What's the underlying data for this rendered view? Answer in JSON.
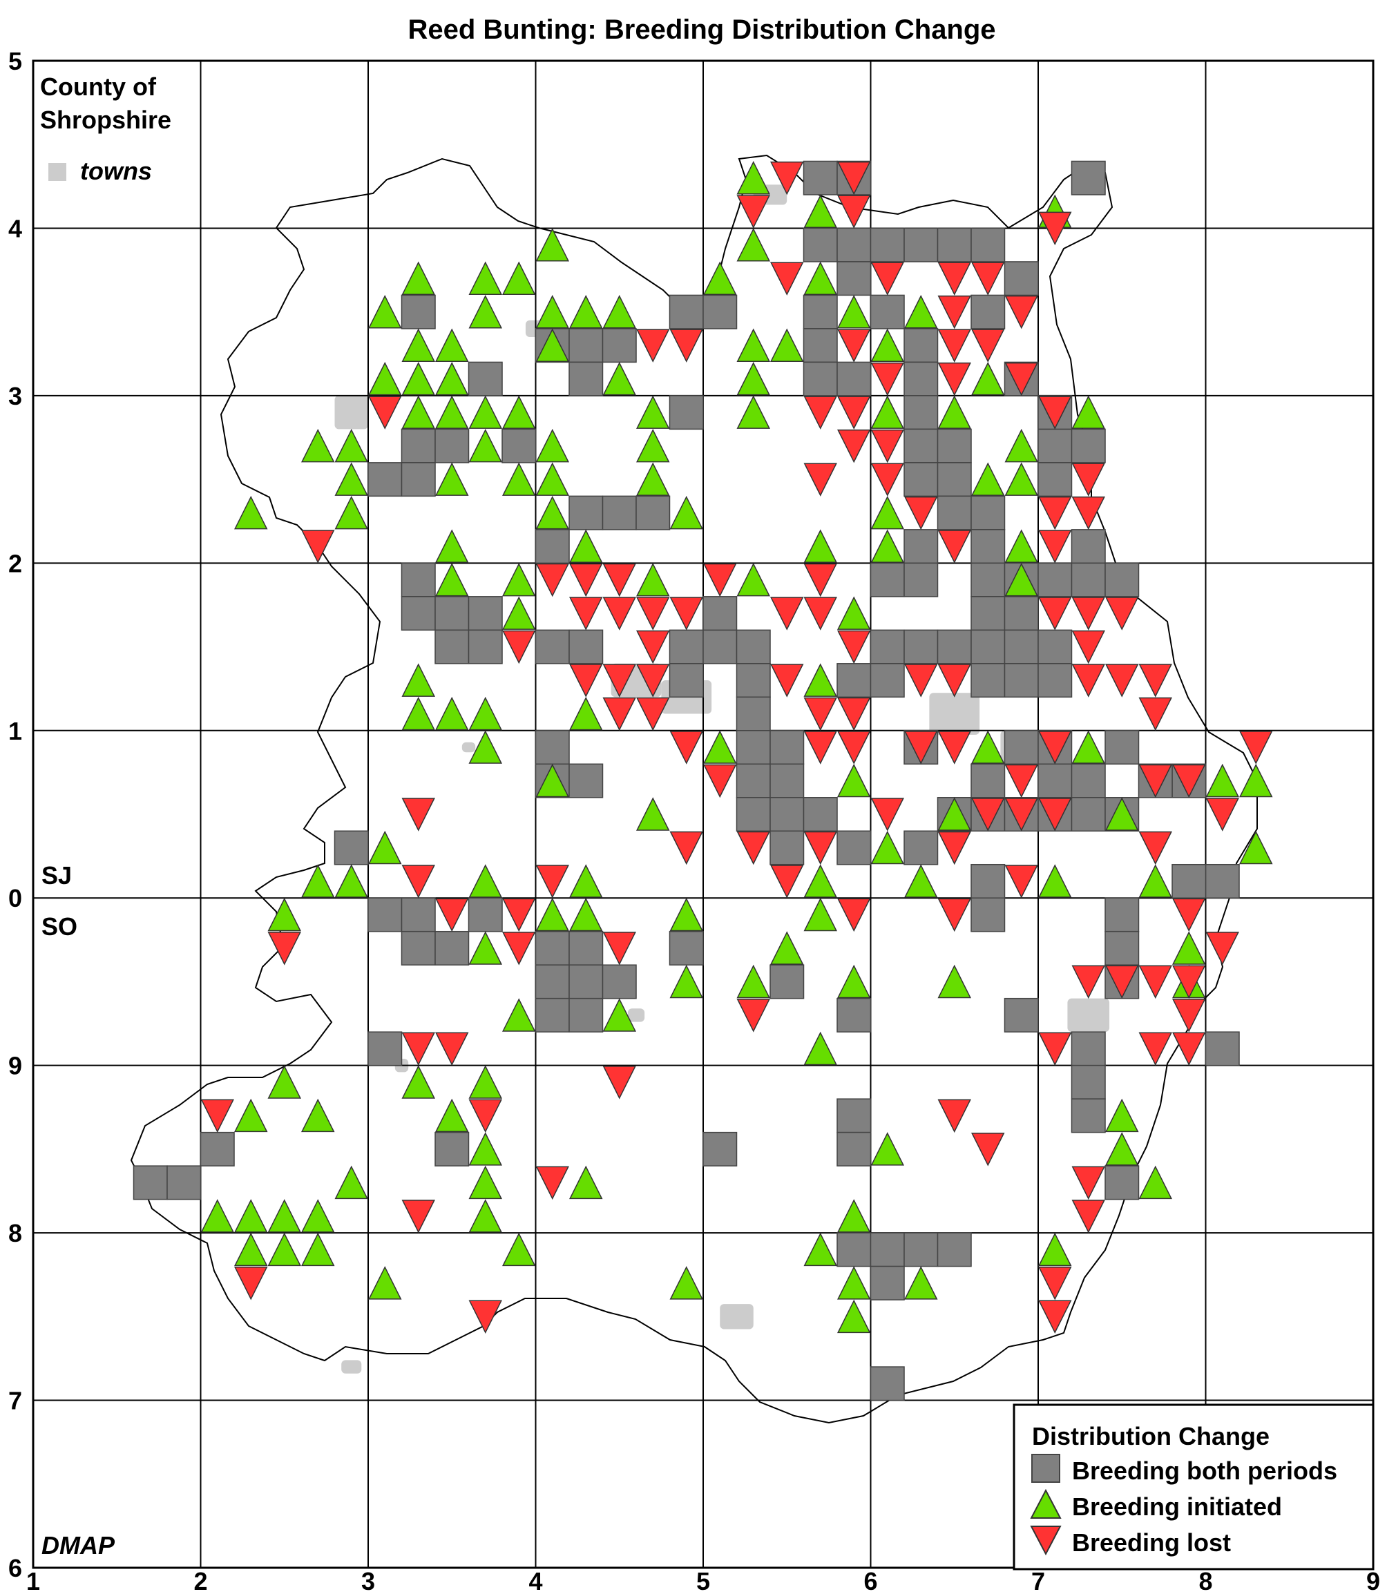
{
  "title": "Reed Bunting: Breeding Distribution Change",
  "county_label": [
    "County of",
    "Shropshire"
  ],
  "towns_label": "towns",
  "grid_labels": {
    "north": "SJ",
    "south": "SO"
  },
  "credit": "DMAP",
  "x_axis_ticks": [
    "1",
    "2",
    "3",
    "4",
    "5",
    "6",
    "7",
    "8",
    "9"
  ],
  "y_axis_ticks": [
    "6",
    "7",
    "8",
    "9",
    "0",
    "1",
    "2",
    "3",
    "4",
    "5"
  ],
  "colors": {
    "both": "#808080",
    "initiated": "#66dd00",
    "lost": "#ff3333",
    "towns": "#cccccc",
    "grid": "#000000"
  },
  "legend": {
    "title": "Distribution Change",
    "items": [
      {
        "key": "both",
        "label": "Breeding both periods",
        "symbol": "square"
      },
      {
        "key": "initiated",
        "label": "Breeding initiated",
        "symbol": "triangle-up"
      },
      {
        "key": "lost",
        "label": "Breeding lost",
        "symbol": "triangle-down"
      }
    ]
  },
  "chart_data": {
    "type": "map",
    "x_range": [
      1,
      9
    ],
    "y_range": [
      6,
      15
    ],
    "cell_size_km": 2,
    "note_y": "y values are continuous northings; tick labels show last digit",
    "both": [
      [
        1.7,
        8.3
      ],
      [
        1.9,
        8.3
      ],
      [
        2.1,
        8.5
      ],
      [
        3.3,
        13.5
      ],
      [
        3.7,
        13.1
      ],
      [
        4.1,
        13.3
      ],
      [
        4.3,
        13.3
      ],
      [
        4.5,
        13.3
      ],
      [
        4.3,
        13.1
      ],
      [
        3.3,
        12.7
      ],
      [
        3.5,
        12.7
      ],
      [
        3.9,
        12.7
      ],
      [
        3.1,
        12.5
      ],
      [
        3.3,
        12.5
      ],
      [
        4.9,
        12.9
      ],
      [
        4.3,
        12.3
      ],
      [
        4.5,
        12.3
      ],
      [
        4.7,
        12.3
      ],
      [
        4.1,
        12.1
      ],
      [
        3.3,
        11.9
      ],
      [
        3.3,
        11.7
      ],
      [
        3.5,
        11.7
      ],
      [
        3.7,
        11.7
      ],
      [
        3.5,
        11.5
      ],
      [
        3.7,
        11.5
      ],
      [
        4.1,
        11.5
      ],
      [
        4.3,
        11.5
      ],
      [
        4.1,
        10.9
      ],
      [
        4.1,
        10.7
      ],
      [
        4.3,
        10.7
      ],
      [
        4.9,
        13.5
      ],
      [
        5.1,
        13.5
      ],
      [
        4.9,
        11.5
      ],
      [
        5.1,
        11.5
      ],
      [
        5.3,
        11.5
      ],
      [
        5.1,
        11.7
      ],
      [
        4.9,
        11.3
      ],
      [
        5.3,
        11.3
      ],
      [
        5.3,
        11.1
      ],
      [
        5.3,
        10.9
      ],
      [
        5.5,
        10.9
      ],
      [
        5.3,
        10.7
      ],
      [
        5.5,
        10.7
      ],
      [
        5.3,
        10.5
      ],
      [
        5.5,
        10.5
      ],
      [
        5.7,
        10.5
      ],
      [
        5.5,
        10.3
      ],
      [
        5.9,
        10.3
      ],
      [
        5.9,
        11.3
      ],
      [
        5.7,
        14.3
      ],
      [
        5.9,
        14.3
      ],
      [
        5.7,
        13.9
      ],
      [
        5.9,
        13.9
      ],
      [
        6.1,
        13.9
      ],
      [
        6.3,
        13.9
      ],
      [
        6.5,
        13.9
      ],
      [
        6.7,
        13.9
      ],
      [
        5.9,
        13.7
      ],
      [
        6.9,
        13.7
      ],
      [
        5.7,
        13.5
      ],
      [
        6.1,
        13.5
      ],
      [
        6.7,
        13.5
      ],
      [
        5.7,
        13.3
      ],
      [
        6.3,
        13.3
      ],
      [
        5.7,
        13.1
      ],
      [
        5.9,
        13.1
      ],
      [
        6.3,
        13.1
      ],
      [
        6.9,
        13.1
      ],
      [
        6.3,
        12.9
      ],
      [
        6.3,
        12.7
      ],
      [
        6.5,
        12.7
      ],
      [
        6.3,
        12.5
      ],
      [
        6.5,
        12.5
      ],
      [
        6.5,
        12.3
      ],
      [
        6.7,
        12.3
      ],
      [
        6.3,
        12.1
      ],
      [
        6.7,
        12.1
      ],
      [
        6.1,
        11.9
      ],
      [
        6.3,
        11.9
      ],
      [
        6.7,
        11.9
      ],
      [
        6.7,
        11.7
      ],
      [
        6.9,
        11.7
      ],
      [
        6.1,
        11.5
      ],
      [
        6.3,
        11.5
      ],
      [
        6.5,
        11.5
      ],
      [
        6.7,
        11.5
      ],
      [
        6.9,
        11.5
      ],
      [
        7.1,
        11.5
      ],
      [
        6.1,
        11.3
      ],
      [
        6.7,
        11.3
      ],
      [
        6.9,
        11.3
      ],
      [
        7.1,
        11.3
      ],
      [
        6.3,
        10.9
      ],
      [
        6.9,
        10.9
      ],
      [
        7.1,
        10.9
      ],
      [
        6.7,
        10.7
      ],
      [
        7.1,
        10.7
      ],
      [
        6.5,
        10.5
      ],
      [
        6.7,
        10.5
      ],
      [
        6.9,
        10.5
      ],
      [
        7.1,
        10.5
      ],
      [
        7.3,
        10.5
      ],
      [
        7.5,
        10.5
      ],
      [
        6.3,
        10.3
      ],
      [
        6.7,
        10.1
      ],
      [
        6.7,
        9.9
      ],
      [
        7.1,
        12.7
      ],
      [
        7.3,
        12.7
      ],
      [
        7.1,
        12.5
      ],
      [
        7.1,
        12.9
      ],
      [
        7.3,
        12.1
      ],
      [
        6.9,
        11.9
      ],
      [
        7.1,
        11.9
      ],
      [
        7.3,
        11.9
      ],
      [
        7.5,
        11.9
      ],
      [
        7.5,
        10.9
      ],
      [
        7.3,
        10.7
      ],
      [
        7.9,
        10.7
      ],
      [
        7.7,
        10.7
      ],
      [
        8.1,
        10.1
      ],
      [
        7.9,
        10.1
      ],
      [
        7.5,
        9.9
      ],
      [
        7.5,
        9.7
      ],
      [
        7.5,
        9.5
      ],
      [
        6.9,
        9.3
      ],
      [
        7.3,
        9.1
      ],
      [
        7.3,
        8.9
      ],
      [
        7.3,
        8.7
      ],
      [
        8.1,
        9.1
      ],
      [
        7.5,
        8.3
      ],
      [
        4.9,
        9.7
      ],
      [
        5.5,
        9.5
      ],
      [
        5.9,
        9.3
      ],
      [
        4.1,
        9.7
      ],
      [
        4.3,
        9.7
      ],
      [
        4.1,
        9.5
      ],
      [
        4.3,
        9.5
      ],
      [
        4.5,
        9.5
      ],
      [
        4.1,
        9.3
      ],
      [
        4.3,
        9.3
      ],
      [
        3.1,
        9.9
      ],
      [
        3.3,
        9.9
      ],
      [
        3.7,
        9.9
      ],
      [
        3.3,
        9.7
      ],
      [
        3.5,
        9.7
      ],
      [
        3.1,
        9.1
      ],
      [
        3.5,
        8.5
      ],
      [
        2.9,
        10.3
      ],
      [
        5.1,
        8.5
      ],
      [
        5.9,
        8.7
      ],
      [
        5.9,
        8.5
      ],
      [
        5.9,
        7.9
      ],
      [
        6.1,
        7.9
      ],
      [
        6.3,
        7.9
      ],
      [
        6.5,
        7.9
      ],
      [
        6.1,
        7.7
      ],
      [
        6.1,
        7.1
      ],
      [
        7.3,
        14.3
      ]
    ],
    "initiated": [
      [
        2.3,
        12.3
      ],
      [
        2.7,
        12.7
      ],
      [
        2.9,
        12.7
      ],
      [
        2.9,
        12.5
      ],
      [
        2.9,
        12.3
      ],
      [
        3.1,
        13.5
      ],
      [
        3.3,
        13.7
      ],
      [
        3.3,
        13.3
      ],
      [
        3.5,
        13.3
      ],
      [
        3.1,
        13.1
      ],
      [
        3.3,
        13.1
      ],
      [
        3.5,
        13.1
      ],
      [
        3.3,
        12.9
      ],
      [
        3.5,
        12.9
      ],
      [
        3.7,
        12.9
      ],
      [
        3.9,
        12.9
      ],
      [
        3.7,
        12.7
      ],
      [
        3.5,
        12.5
      ],
      [
        3.7,
        13.7
      ],
      [
        3.9,
        13.7
      ],
      [
        3.7,
        13.5
      ],
      [
        4.1,
        13.9
      ],
      [
        4.1,
        13.5
      ],
      [
        4.3,
        13.5
      ],
      [
        4.5,
        13.5
      ],
      [
        4.1,
        13.3
      ],
      [
        4.5,
        13.1
      ],
      [
        4.7,
        12.9
      ],
      [
        4.7,
        12.7
      ],
      [
        4.7,
        12.5
      ],
      [
        4.1,
        12.7
      ],
      [
        4.1,
        12.5
      ],
      [
        3.9,
        12.5
      ],
      [
        4.1,
        12.3
      ],
      [
        4.9,
        12.3
      ],
      [
        4.3,
        12.1
      ],
      [
        3.5,
        12.1
      ],
      [
        3.5,
        11.9
      ],
      [
        3.9,
        11.9
      ],
      [
        3.9,
        11.7
      ],
      [
        4.7,
        11.9
      ],
      [
        3.3,
        11.3
      ],
      [
        3.3,
        11.1
      ],
      [
        3.5,
        11.1
      ],
      [
        3.7,
        11.1
      ],
      [
        3.7,
        10.9
      ],
      [
        4.3,
        11.1
      ],
      [
        4.1,
        10.7
      ],
      [
        3.1,
        10.3
      ],
      [
        2.7,
        10.1
      ],
      [
        2.9,
        10.1
      ],
      [
        2.5,
        9.9
      ],
      [
        3.7,
        10.1
      ],
      [
        4.3,
        10.1
      ],
      [
        4.1,
        9.9
      ],
      [
        4.3,
        9.9
      ],
      [
        3.7,
        9.7
      ],
      [
        4.5,
        9.3
      ],
      [
        3.9,
        9.3
      ],
      [
        4.7,
        10.5
      ],
      [
        4.9,
        9.9
      ],
      [
        4.9,
        9.5
      ],
      [
        5.1,
        13.7
      ],
      [
        5.3,
        14.3
      ],
      [
        5.3,
        13.9
      ],
      [
        5.7,
        14.1
      ],
      [
        5.7,
        13.7
      ],
      [
        5.9,
        13.5
      ],
      [
        5.3,
        13.3
      ],
      [
        5.5,
        13.3
      ],
      [
        5.3,
        13.1
      ],
      [
        5.3,
        12.9
      ],
      [
        5.1,
        10.9
      ],
      [
        5.3,
        11.9
      ],
      [
        5.7,
        12.1
      ],
      [
        5.9,
        11.7
      ],
      [
        5.7,
        11.3
      ],
      [
        5.9,
        10.7
      ],
      [
        5.7,
        10.1
      ],
      [
        5.7,
        9.9
      ],
      [
        5.5,
        9.7
      ],
      [
        5.3,
        9.5
      ],
      [
        5.9,
        9.5
      ],
      [
        5.7,
        9.1
      ],
      [
        6.1,
        13.3
      ],
      [
        6.3,
        13.5
      ],
      [
        6.1,
        12.9
      ],
      [
        6.5,
        12.9
      ],
      [
        6.1,
        12.3
      ],
      [
        6.1,
        12.1
      ],
      [
        6.7,
        13.1
      ],
      [
        6.9,
        12.7
      ],
      [
        6.7,
        12.5
      ],
      [
        6.9,
        12.5
      ],
      [
        6.9,
        12.1
      ],
      [
        6.9,
        11.9
      ],
      [
        6.7,
        10.9
      ],
      [
        6.5,
        10.5
      ],
      [
        6.1,
        10.3
      ],
      [
        6.3,
        10.1
      ],
      [
        7.1,
        10.1
      ],
      [
        6.5,
        9.5
      ],
      [
        7.1,
        14.1
      ],
      [
        7.3,
        12.9
      ],
      [
        7.3,
        10.9
      ],
      [
        7.5,
        10.5
      ],
      [
        7.7,
        10.1
      ],
      [
        7.9,
        9.7
      ],
      [
        7.9,
        9.5
      ],
      [
        8.1,
        10.7
      ],
      [
        8.3,
        10.7
      ],
      [
        8.3,
        10.3
      ],
      [
        2.5,
        8.9
      ],
      [
        2.3,
        8.7
      ],
      [
        2.7,
        8.7
      ],
      [
        2.9,
        8.3
      ],
      [
        2.1,
        8.1
      ],
      [
        2.3,
        8.1
      ],
      [
        2.5,
        8.1
      ],
      [
        2.7,
        8.1
      ],
      [
        2.3,
        7.9
      ],
      [
        2.5,
        7.9
      ],
      [
        2.7,
        7.9
      ],
      [
        3.1,
        7.7
      ],
      [
        3.3,
        8.9
      ],
      [
        3.5,
        8.7
      ],
      [
        3.7,
        8.9
      ],
      [
        3.7,
        8.5
      ],
      [
        3.7,
        8.3
      ],
      [
        3.7,
        8.1
      ],
      [
        3.9,
        7.9
      ],
      [
        4.3,
        8.3
      ],
      [
        4.9,
        7.7
      ],
      [
        5.7,
        7.9
      ],
      [
        5.9,
        8.1
      ],
      [
        5.9,
        7.7
      ],
      [
        5.9,
        7.5
      ],
      [
        6.1,
        8.5
      ],
      [
        6.3,
        7.7
      ],
      [
        7.1,
        7.9
      ],
      [
        7.5,
        8.7
      ],
      [
        7.5,
        8.5
      ],
      [
        7.7,
        8.3
      ]
    ],
    "lost": [
      [
        3.1,
        12.9
      ],
      [
        2.7,
        12.1
      ],
      [
        2.5,
        9.7
      ],
      [
        3.3,
        10.5
      ],
      [
        3.3,
        10.1
      ],
      [
        3.5,
        9.9
      ],
      [
        3.9,
        9.9
      ],
      [
        3.9,
        9.7
      ],
      [
        3.3,
        9.1
      ],
      [
        3.5,
        9.1
      ],
      [
        2.1,
        8.7
      ],
      [
        3.7,
        8.7
      ],
      [
        3.3,
        8.1
      ],
      [
        3.7,
        7.5
      ],
      [
        2.3,
        7.7
      ],
      [
        4.1,
        8.3
      ],
      [
        4.5,
        8.9
      ],
      [
        4.1,
        10.1
      ],
      [
        4.5,
        9.7
      ],
      [
        4.7,
        13.3
      ],
      [
        4.9,
        13.3
      ],
      [
        4.1,
        11.9
      ],
      [
        4.3,
        11.9
      ],
      [
        4.5,
        11.9
      ],
      [
        4.3,
        11.7
      ],
      [
        4.5,
        11.7
      ],
      [
        4.7,
        11.7
      ],
      [
        4.9,
        11.7
      ],
      [
        3.9,
        11.5
      ],
      [
        4.7,
        11.5
      ],
      [
        4.3,
        11.3
      ],
      [
        4.5,
        11.3
      ],
      [
        4.7,
        11.3
      ],
      [
        4.5,
        11.1
      ],
      [
        4.7,
        11.1
      ],
      [
        4.9,
        10.9
      ],
      [
        5.1,
        11.9
      ],
      [
        5.5,
        11.7
      ],
      [
        5.7,
        11.7
      ],
      [
        5.7,
        11.9
      ],
      [
        5.5,
        11.3
      ],
      [
        5.9,
        11.5
      ],
      [
        5.7,
        11.1
      ],
      [
        5.9,
        11.1
      ],
      [
        5.7,
        10.9
      ],
      [
        5.9,
        10.9
      ],
      [
        5.1,
        10.7
      ],
      [
        5.3,
        10.3
      ],
      [
        5.7,
        10.3
      ],
      [
        5.5,
        10.1
      ],
      [
        4.9,
        10.3
      ],
      [
        5.9,
        9.9
      ],
      [
        5.3,
        9.3
      ],
      [
        5.5,
        14.3
      ],
      [
        5.9,
        14.3
      ],
      [
        5.3,
        14.1
      ],
      [
        5.9,
        14.1
      ],
      [
        5.5,
        13.7
      ],
      [
        6.1,
        13.7
      ],
      [
        6.5,
        13.7
      ],
      [
        6.7,
        13.7
      ],
      [
        6.5,
        13.5
      ],
      [
        6.9,
        13.5
      ],
      [
        5.9,
        13.3
      ],
      [
        6.5,
        13.3
      ],
      [
        6.7,
        13.3
      ],
      [
        6.1,
        13.1
      ],
      [
        6.5,
        13.1
      ],
      [
        6.9,
        13.1
      ],
      [
        5.7,
        12.9
      ],
      [
        5.9,
        12.9
      ],
      [
        5.9,
        12.7
      ],
      [
        6.1,
        12.7
      ],
      [
        7.1,
        12.9
      ],
      [
        5.7,
        12.5
      ],
      [
        6.1,
        12.5
      ],
      [
        6.3,
        12.3
      ],
      [
        6.5,
        12.1
      ],
      [
        7.1,
        12.3
      ],
      [
        7.3,
        12.3
      ],
      [
        7.1,
        12.1
      ],
      [
        7.3,
        12.5
      ],
      [
        7.1,
        11.7
      ],
      [
        7.3,
        11.7
      ],
      [
        7.5,
        11.7
      ],
      [
        7.3,
        11.5
      ],
      [
        6.3,
        11.3
      ],
      [
        6.5,
        11.3
      ],
      [
        7.3,
        11.3
      ],
      [
        7.5,
        11.3
      ],
      [
        7.7,
        11.3
      ],
      [
        7.7,
        11.1
      ],
      [
        6.3,
        10.9
      ],
      [
        6.5,
        10.9
      ],
      [
        7.1,
        10.9
      ],
      [
        6.9,
        10.7
      ],
      [
        7.7,
        10.7
      ],
      [
        7.9,
        10.7
      ],
      [
        8.3,
        10.9
      ],
      [
        6.1,
        10.5
      ],
      [
        6.5,
        10.3
      ],
      [
        6.7,
        10.5
      ],
      [
        6.9,
        10.5
      ],
      [
        7.1,
        10.5
      ],
      [
        8.1,
        10.5
      ],
      [
        7.7,
        10.3
      ],
      [
        6.9,
        10.1
      ],
      [
        6.5,
        9.9
      ],
      [
        7.9,
        9.9
      ],
      [
        8.1,
        9.7
      ],
      [
        7.3,
        9.5
      ],
      [
        7.5,
        9.5
      ],
      [
        7.7,
        9.5
      ],
      [
        7.9,
        9.5
      ],
      [
        7.9,
        9.3
      ],
      [
        7.1,
        9.1
      ],
      [
        7.7,
        9.1
      ],
      [
        7.9,
        9.1
      ],
      [
        6.5,
        8.7
      ],
      [
        6.7,
        8.5
      ],
      [
        7.3,
        8.3
      ],
      [
        7.3,
        8.1
      ],
      [
        7.1,
        7.7
      ],
      [
        7.1,
        7.5
      ],
      [
        7.1,
        14.0
      ]
    ]
  }
}
